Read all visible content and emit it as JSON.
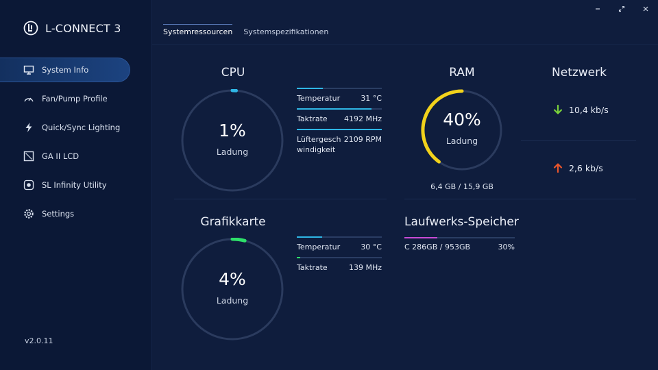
{
  "app": {
    "title": "L-CONNECT 3",
    "version": "v2.0.11"
  },
  "sidebar": {
    "items": [
      {
        "label": "System Info",
        "icon": "monitor-icon",
        "active": true
      },
      {
        "label": "Fan/Pump Profile",
        "icon": "gauge-icon"
      },
      {
        "label": "Quick/Sync Lighting",
        "icon": "lightning-icon"
      },
      {
        "label": "GA II LCD",
        "icon": "lcd-icon"
      },
      {
        "label": "SL Infinity Utility",
        "icon": "infinity-mirror-icon"
      },
      {
        "label": "Settings",
        "icon": "gear-icon"
      }
    ]
  },
  "tabs": [
    {
      "label": "Systemressourcen",
      "active": true
    },
    {
      "label": "Systemspezifikationen",
      "active": false
    }
  ],
  "cpu": {
    "title": "CPU",
    "load_value": "1%",
    "load_fraction": 0.01,
    "load_label": "Ladung",
    "stats": [
      {
        "name": "Temperatur",
        "value": "31 °C",
        "fraction": 0.31
      },
      {
        "name": "Taktrate",
        "value": "4192 MHz",
        "fraction": 0.88
      },
      {
        "name": "Lüftergeschwindigkeit",
        "value": "2109 RPM",
        "fraction": 1.0
      }
    ]
  },
  "ram": {
    "title": "RAM",
    "load_value": "40%",
    "load_fraction": 0.4,
    "load_label": "Ladung",
    "usage": "6,4 GB / 15,9 GB"
  },
  "network": {
    "title": "Netzwerk",
    "download": "10,4 kb/s",
    "upload": "2,6 kb/s"
  },
  "gpu": {
    "title": "Grafikkarte",
    "load_value": "4%",
    "load_fraction": 0.04,
    "load_label": "Ladung",
    "stats": [
      {
        "name": "Temperatur",
        "value": "30 °C",
        "fraction": 0.3
      },
      {
        "name": "Taktrate",
        "value": "139 MHz",
        "fraction": 0.04
      }
    ]
  },
  "storage": {
    "title": "Laufwerks-Speicher",
    "drives": [
      {
        "label": "C 286GB / 953GB",
        "percent": "30%",
        "fraction": 0.3
      }
    ]
  },
  "colors": {
    "background": "#0f1d3d",
    "sidebar": "#0b1836",
    "cpu_accent": "#2fb7e6",
    "ram_accent": "#f2d21b",
    "gpu_accent": "#2ee06a",
    "storage_accent": "#c94bd6",
    "download_arrow": "#7ad23a",
    "upload_arrow": "#e8552c"
  }
}
